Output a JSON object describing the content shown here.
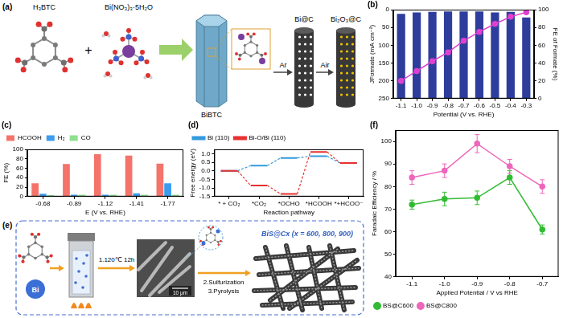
{
  "chart_data": [
    {
      "type": "bar",
      "annotations": [
        "(b)"
      ],
      "x_label": "Potential (V vs. RHE)",
      "y_label": "JFormate (mA cm⁻²)",
      "y2_label": "FE of Formate (%)",
      "categories": [
        "-1.1",
        "-1.0",
        "-0.9",
        "-0.8",
        "-0.7",
        "-0.6",
        "-0.5",
        "-0.4",
        "-0.3"
      ],
      "series": [
        {
          "type": "bar",
          "color": "#2e3d9c",
          "values": [
            12,
            8,
            6,
            5,
            5,
            5,
            8,
            6,
            22
          ]
        },
        {
          "type": "line",
          "axis": "y2",
          "color": "#e040d0",
          "marker": "circle",
          "values": [
            20,
            31,
            42,
            52,
            65,
            75,
            84,
            92,
            97
          ]
        }
      ],
      "ylim": [
        250,
        0
      ],
      "yticks": [
        0,
        50,
        100,
        150,
        200,
        250
      ],
      "y2lim": [
        0,
        100
      ],
      "y2ticks": [
        0,
        20,
        40,
        60,
        80,
        100
      ],
      "grid": false
    },
    {
      "type": "bar",
      "annotations": [
        "(c)"
      ],
      "x_label": "E (V vs. RHE)",
      "y_label": "FE (%)",
      "categories": [
        "-0.68",
        "-0.89",
        "-1.12",
        "-1.41",
        "-1.77"
      ],
      "series": [
        {
          "name": "HCOOH",
          "color": "#f4736b",
          "values": [
            28,
            69,
            90,
            87,
            70
          ]
        },
        {
          "name": "H₂",
          "color": "#3b9cf0",
          "values": [
            6,
            4,
            4,
            7,
            28
          ]
        },
        {
          "name": "CO",
          "color": "#8fe08f",
          "values": [
            3,
            4,
            4,
            4,
            4
          ]
        }
      ],
      "ylim": [
        0,
        100
      ],
      "yticks": [
        0,
        20,
        40,
        60,
        80,
        100
      ],
      "legend": "upper left",
      "grid": false
    },
    {
      "type": "line",
      "annotations": [
        "(d)"
      ],
      "line_style": "step",
      "x_label": "Reaction pathway",
      "y_label": "Free energy (eV)",
      "categories": [
        "* + CO₂",
        "*CO₂",
        "*OCHO",
        "*HCOOH",
        "*+HCOO⁻"
      ],
      "series": [
        {
          "name": "Bi (110)",
          "color": "#3399dd",
          "values": [
            0,
            0.3,
            0.75,
            0.85,
            0.45
          ]
        },
        {
          "name": "Bi-O/Bi (110)",
          "color": "#e8312f",
          "values": [
            0,
            -0.85,
            -1.35,
            1.1,
            0.45
          ]
        }
      ],
      "ylim": [
        -1.5,
        1.25
      ],
      "yticks": [
        -1.5,
        {
          "value": -1,
          "label": "-1.0"
        },
        -0.5,
        {
          "value": 0,
          "label": "0.0"
        },
        0.5,
        {
          "value": 1,
          "label": "1.0"
        }
      ],
      "legend": "upper left",
      "grid": false
    },
    {
      "type": "line",
      "annotations": [
        "(f)"
      ],
      "x_label": "Applied Potential / V vs RHE",
      "y_label": "Faradaic Efficiency / %",
      "categories": [
        "-1.1",
        "-1.0",
        "-0.9",
        "-0.8",
        "-0.7"
      ],
      "series": [
        {
          "name": "BS@C600",
          "color": "#33bb33",
          "marker": "circle",
          "values": [
            72,
            74.5,
            75,
            84,
            61
          ],
          "errors": [
            2,
            3,
            3,
            3,
            2
          ]
        },
        {
          "name": "BS@C800",
          "color": "#ee66bb",
          "marker": "circle",
          "values": [
            84,
            87,
            99,
            89,
            80
          ],
          "errors": [
            3,
            3,
            4,
            3,
            3
          ]
        }
      ],
      "ylim": [
        40,
        105
      ],
      "yticks": [
        40,
        50,
        60,
        70,
        80,
        90,
        100
      ],
      "legend": "lower left",
      "grid": false
    }
  ],
  "schemes": {
    "a": {
      "panel": "(a)",
      "reactants": [
        "H₃BTC",
        "Bi(NO₃)₃·5H₂O"
      ],
      "plus": "+",
      "mof": "BiBTC",
      "steps": [
        "Ar",
        "Air"
      ],
      "products": [
        "Bi@C",
        "Bi₂O₃@C"
      ]
    },
    "e": {
      "panel": "(e)",
      "metal": "Bi",
      "steps": [
        "1.120℃ 12h",
        "2.Sulfurization",
        "3.Pyrolysis"
      ],
      "scale_bar": "10 μm",
      "product": "BiS@Cx (x = 600, 800, 900)"
    }
  }
}
